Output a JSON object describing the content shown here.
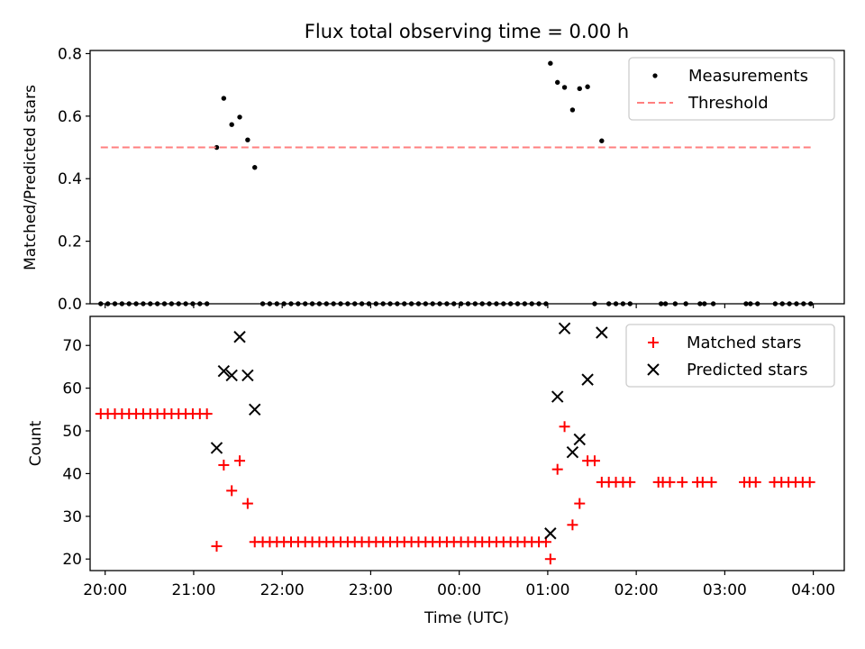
{
  "chart_data": [
    {
      "type": "scatter",
      "title": "Flux total observing time = 0.00 h",
      "xlabel": "",
      "ylabel": "Matched/Predicted stars",
      "x_unit": "hours since 20:00 UTC",
      "xlim": [
        -0.17,
        8.35
      ],
      "ylim": [
        0.0,
        0.81
      ],
      "yticks": [
        0.0,
        0.2,
        0.4,
        0.6,
        0.8
      ],
      "ytick_labels": [
        "0.0",
        "0.2",
        "0.4",
        "0.6",
        "0.8"
      ],
      "grid": false,
      "legend": {
        "placement": "upper right",
        "entries": [
          "Measurements",
          "Threshold"
        ]
      },
      "series": [
        {
          "name": "Measurements",
          "marker": "dot",
          "color": "#000000",
          "points": [
            [
              -0.05,
              0
            ],
            [
              0.03,
              0
            ],
            [
              0.11,
              0
            ],
            [
              0.19,
              0
            ],
            [
              0.27,
              0
            ],
            [
              0.35,
              0
            ],
            [
              0.43,
              0
            ],
            [
              0.51,
              0
            ],
            [
              0.59,
              0
            ],
            [
              0.67,
              0
            ],
            [
              0.75,
              0
            ],
            [
              0.83,
              0
            ],
            [
              0.91,
              0
            ],
            [
              0.99,
              0
            ],
            [
              1.07,
              0
            ],
            [
              1.15,
              0
            ],
            [
              1.26,
              0.5
            ],
            [
              1.34,
              0.657
            ],
            [
              1.43,
              0.573
            ],
            [
              1.52,
              0.597
            ],
            [
              1.61,
              0.524
            ],
            [
              1.69,
              0.436
            ],
            [
              1.78,
              0
            ],
            [
              1.86,
              0
            ],
            [
              1.94,
              0
            ],
            [
              2.02,
              0
            ],
            [
              2.1,
              0
            ],
            [
              2.18,
              0
            ],
            [
              2.26,
              0
            ],
            [
              2.34,
              0
            ],
            [
              2.42,
              0
            ],
            [
              2.5,
              0
            ],
            [
              2.58,
              0
            ],
            [
              2.66,
              0
            ],
            [
              2.74,
              0
            ],
            [
              2.82,
              0
            ],
            [
              2.9,
              0
            ],
            [
              2.98,
              0
            ],
            [
              3.06,
              0
            ],
            [
              3.14,
              0
            ],
            [
              3.22,
              0
            ],
            [
              3.3,
              0
            ],
            [
              3.38,
              0
            ],
            [
              3.46,
              0
            ],
            [
              3.54,
              0
            ],
            [
              3.62,
              0
            ],
            [
              3.7,
              0
            ],
            [
              3.78,
              0
            ],
            [
              3.86,
              0
            ],
            [
              3.94,
              0
            ],
            [
              4.02,
              0
            ],
            [
              4.1,
              0
            ],
            [
              4.18,
              0
            ],
            [
              4.26,
              0
            ],
            [
              4.34,
              0
            ],
            [
              4.42,
              0
            ],
            [
              4.5,
              0
            ],
            [
              4.58,
              0
            ],
            [
              4.66,
              0
            ],
            [
              4.74,
              0
            ],
            [
              4.82,
              0
            ],
            [
              4.9,
              0
            ],
            [
              4.98,
              0
            ],
            [
              5.03,
              0.769
            ],
            [
              5.11,
              0.708
            ],
            [
              5.19,
              0.692
            ],
            [
              5.28,
              0.62
            ],
            [
              5.36,
              0.688
            ],
            [
              5.45,
              0.694
            ],
            [
              5.61,
              0.521
            ],
            [
              5.53,
              0
            ],
            [
              5.69,
              0
            ],
            [
              5.77,
              0
            ],
            [
              5.85,
              0
            ],
            [
              5.93,
              0
            ],
            [
              6.28,
              0
            ],
            [
              6.33,
              0
            ],
            [
              6.44,
              0
            ],
            [
              6.56,
              0
            ],
            [
              6.72,
              0
            ],
            [
              6.77,
              0
            ],
            [
              6.87,
              0
            ],
            [
              7.24,
              0
            ],
            [
              7.29,
              0
            ],
            [
              7.37,
              0
            ],
            [
              7.57,
              0
            ],
            [
              7.65,
              0
            ],
            [
              7.73,
              0
            ],
            [
              7.81,
              0
            ],
            [
              7.89,
              0
            ],
            [
              7.97,
              0
            ]
          ]
        },
        {
          "name": "Threshold",
          "style": "dashed",
          "color": "#ff7f7f",
          "points": [
            [
              -0.05,
              0.5
            ],
            [
              7.97,
              0.5
            ]
          ]
        }
      ]
    },
    {
      "type": "scatter",
      "title": "",
      "xlabel": "Time (UTC)",
      "ylabel": "Count",
      "x_unit": "hours since 20:00 UTC",
      "xlim": [
        -0.17,
        8.35
      ],
      "ylim": [
        17.3,
        76.8
      ],
      "xticks": [
        0,
        1,
        2,
        3,
        4,
        5,
        6,
        7,
        8
      ],
      "xtick_labels": [
        "20:00",
        "21:00",
        "22:00",
        "23:00",
        "00:00",
        "01:00",
        "02:00",
        "03:00",
        "04:00"
      ],
      "yticks": [
        20,
        30,
        40,
        50,
        60,
        70
      ],
      "ytick_labels": [
        "20",
        "30",
        "40",
        "50",
        "60",
        "70"
      ],
      "grid": false,
      "legend": {
        "placement": "upper right",
        "entries": [
          "Matched stars",
          "Predicted stars"
        ]
      },
      "series": [
        {
          "name": "Matched stars",
          "marker": "plus",
          "color": "#ff0000",
          "points": [
            [
              -0.05,
              54
            ],
            [
              0.03,
              54
            ],
            [
              0.11,
              54
            ],
            [
              0.19,
              54
            ],
            [
              0.27,
              54
            ],
            [
              0.35,
              54
            ],
            [
              0.43,
              54
            ],
            [
              0.51,
              54
            ],
            [
              0.59,
              54
            ],
            [
              0.67,
              54
            ],
            [
              0.75,
              54
            ],
            [
              0.83,
              54
            ],
            [
              0.91,
              54
            ],
            [
              0.99,
              54
            ],
            [
              1.07,
              54
            ],
            [
              1.15,
              54
            ],
            [
              1.26,
              23
            ],
            [
              1.34,
              42
            ],
            [
              1.43,
              36
            ],
            [
              1.52,
              43
            ],
            [
              1.61,
              33
            ],
            [
              1.69,
              24
            ],
            [
              1.78,
              24
            ],
            [
              1.86,
              24
            ],
            [
              1.94,
              24
            ],
            [
              2.02,
              24
            ],
            [
              2.1,
              24
            ],
            [
              2.18,
              24
            ],
            [
              2.26,
              24
            ],
            [
              2.34,
              24
            ],
            [
              2.42,
              24
            ],
            [
              2.5,
              24
            ],
            [
              2.58,
              24
            ],
            [
              2.66,
              24
            ],
            [
              2.74,
              24
            ],
            [
              2.82,
              24
            ],
            [
              2.9,
              24
            ],
            [
              2.98,
              24
            ],
            [
              3.06,
              24
            ],
            [
              3.14,
              24
            ],
            [
              3.22,
              24
            ],
            [
              3.3,
              24
            ],
            [
              3.38,
              24
            ],
            [
              3.46,
              24
            ],
            [
              3.54,
              24
            ],
            [
              3.62,
              24
            ],
            [
              3.7,
              24
            ],
            [
              3.78,
              24
            ],
            [
              3.86,
              24
            ],
            [
              3.94,
              24
            ],
            [
              4.02,
              24
            ],
            [
              4.1,
              24
            ],
            [
              4.18,
              24
            ],
            [
              4.26,
              24
            ],
            [
              4.34,
              24
            ],
            [
              4.42,
              24
            ],
            [
              4.5,
              24
            ],
            [
              4.58,
              24
            ],
            [
              4.66,
              24
            ],
            [
              4.74,
              24
            ],
            [
              4.82,
              24
            ],
            [
              4.9,
              24
            ],
            [
              4.98,
              24
            ],
            [
              5.03,
              20
            ],
            [
              5.11,
              41
            ],
            [
              5.19,
              51
            ],
            [
              5.28,
              28
            ],
            [
              5.36,
              33
            ],
            [
              5.45,
              43
            ],
            [
              5.53,
              43
            ],
            [
              5.61,
              38
            ],
            [
              5.69,
              38
            ],
            [
              5.77,
              38
            ],
            [
              5.85,
              38
            ],
            [
              5.93,
              38
            ],
            [
              6.25,
              38
            ],
            [
              6.3,
              38
            ],
            [
              6.38,
              38
            ],
            [
              6.52,
              38
            ],
            [
              6.69,
              38
            ],
            [
              6.75,
              38
            ],
            [
              6.85,
              38
            ],
            [
              7.22,
              38
            ],
            [
              7.28,
              38
            ],
            [
              7.35,
              38
            ],
            [
              7.56,
              38
            ],
            [
              7.64,
              38
            ],
            [
              7.72,
              38
            ],
            [
              7.8,
              38
            ],
            [
              7.88,
              38
            ],
            [
              7.96,
              38
            ]
          ]
        },
        {
          "name": "Predicted stars",
          "marker": "x",
          "color": "#000000",
          "points": [
            [
              1.26,
              46
            ],
            [
              1.34,
              64
            ],
            [
              1.43,
              63
            ],
            [
              1.52,
              72
            ],
            [
              1.61,
              63
            ],
            [
              1.69,
              55
            ],
            [
              5.03,
              26
            ],
            [
              5.11,
              58
            ],
            [
              5.19,
              74
            ],
            [
              5.28,
              45
            ],
            [
              5.36,
              48
            ],
            [
              5.45,
              62
            ],
            [
              5.61,
              73
            ]
          ]
        }
      ]
    }
  ]
}
